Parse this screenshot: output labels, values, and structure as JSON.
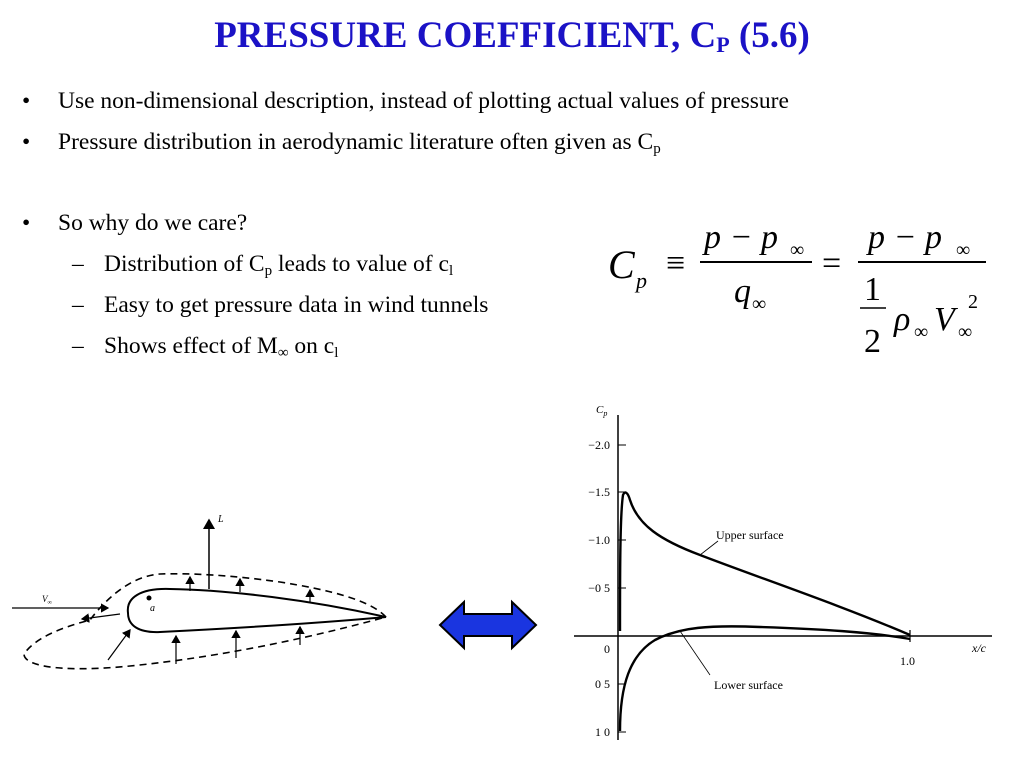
{
  "title": {
    "main": "PRESSURE COEFFICIENT, C",
    "sub": "P",
    "suffix": " (5.6)"
  },
  "bullets": [
    {
      "level": 1,
      "text": "Use non-dimensional description, instead of plotting actual values of pressure"
    },
    {
      "level": 1,
      "text": "Pressure distribution in aerodynamic literature often given as C",
      "sub": "p",
      "after": ""
    },
    {
      "level": 1,
      "text": "So why do we care?"
    },
    {
      "level": 2,
      "text": "Distribution of C",
      "sub": "p",
      "after": " leads to value of c",
      "sub2": "l"
    },
    {
      "level": 2,
      "text": "Easy to get pressure data in wind tunnels"
    },
    {
      "level": 2,
      "text": "Shows effect of M",
      "sub": "∞",
      "after": " on c",
      "sub2": "l"
    }
  ],
  "bullet_marks": {
    "level1": "•",
    "level2": "–"
  },
  "formula": {
    "lhs": "C",
    "lhs_sub": "p",
    "equiv": "≡",
    "eq": "=",
    "num": "p − p",
    "inf": "∞",
    "den1": "q",
    "half_num": "1",
    "half_den": "2",
    "rho": "ρ",
    "V": "V",
    "sq": "2"
  },
  "airfoil_figure": {
    "lift_label": "L",
    "velocity_label": "V",
    "velocity_sub": "∞",
    "point_label": "a"
  },
  "cp_figure": {
    "axis_label": "C",
    "axis_sub": "p",
    "ticks": [
      "−2.0",
      "−1.5",
      "−1.0",
      "−0 5",
      "0",
      "0 5",
      "1 0"
    ],
    "x_label": "x/c",
    "x_tick": "1.0",
    "upper_label": "Upper surface",
    "lower_label": "Lower surface"
  },
  "colors": {
    "title": "#1b12c6",
    "arrow_fill": "#1a35e0"
  }
}
